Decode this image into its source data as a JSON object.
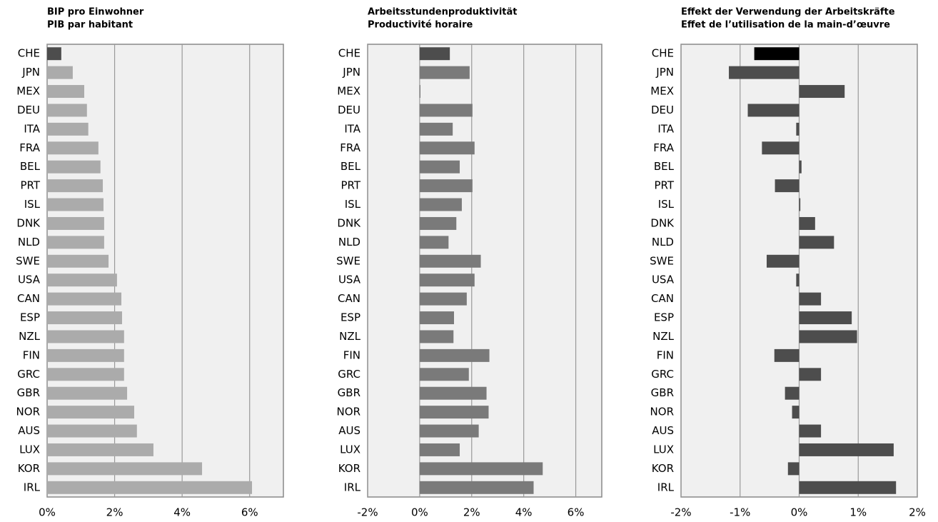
{
  "chart_data": [
    {
      "type": "bar",
      "orientation": "horizontal",
      "title": "BIP pro Einwohner",
      "subtitle": "PIB par habitant",
      "categories": [
        "CHE",
        "JPN",
        "MEX",
        "DEU",
        "ITA",
        "FRA",
        "BEL",
        "PRT",
        "ISL",
        "DNK",
        "NLD",
        "SWE",
        "USA",
        "CAN",
        "ESP",
        "NZL",
        "FIN",
        "GRC",
        "GBR",
        "NOR",
        "AUS",
        "LUX",
        "KOR",
        "IRL"
      ],
      "values": [
        0.42,
        0.76,
        1.1,
        1.18,
        1.22,
        1.52,
        1.58,
        1.65,
        1.67,
        1.69,
        1.69,
        1.82,
        2.07,
        2.2,
        2.22,
        2.28,
        2.28,
        2.28,
        2.37,
        2.58,
        2.66,
        3.15,
        4.59,
        6.07
      ],
      "colors": [
        "#4d4d4d",
        "#ababab",
        "#ababab",
        "#ababab",
        "#ababab",
        "#ababab",
        "#ababab",
        "#ababab",
        "#ababab",
        "#ababab",
        "#ababab",
        "#ababab",
        "#ababab",
        "#ababab",
        "#ababab",
        "#ababab",
        "#ababab",
        "#ababab",
        "#ababab",
        "#ababab",
        "#ababab",
        "#ababab",
        "#ababab",
        "#ababab"
      ],
      "xlim": [
        0,
        7
      ],
      "xticks": [
        {
          "value": 0,
          "label": "0%"
        },
        {
          "value": 2,
          "label": "2%"
        },
        {
          "value": 4,
          "label": "4%"
        },
        {
          "value": 6,
          "label": "6%"
        }
      ],
      "grid": true
    },
    {
      "type": "bar",
      "orientation": "horizontal",
      "title": "Arbeitsstundenproduktivität",
      "subtitle": "Productivité horaire",
      "categories": [
        "CHE",
        "JPN",
        "MEX",
        "DEU",
        "ITA",
        "FRA",
        "BEL",
        "PRT",
        "ISL",
        "DNK",
        "NLD",
        "SWE",
        "USA",
        "CAN",
        "ESP",
        "NZL",
        "FIN",
        "GRC",
        "GBR",
        "NOR",
        "AUS",
        "LUX",
        "KOR",
        "IRL"
      ],
      "values": [
        1.16,
        1.92,
        0.03,
        2.03,
        1.27,
        2.11,
        1.54,
        2.03,
        1.62,
        1.41,
        1.11,
        2.35,
        2.11,
        1.81,
        1.32,
        1.3,
        2.68,
        1.89,
        2.57,
        2.65,
        2.27,
        1.54,
        4.73,
        4.38
      ],
      "colors": [
        "#4d4d4d",
        "#7a7a7a",
        "#7a7a7a",
        "#7a7a7a",
        "#7a7a7a",
        "#7a7a7a",
        "#7a7a7a",
        "#7a7a7a",
        "#7a7a7a",
        "#7a7a7a",
        "#7a7a7a",
        "#7a7a7a",
        "#7a7a7a",
        "#7a7a7a",
        "#7a7a7a",
        "#7a7a7a",
        "#7a7a7a",
        "#7a7a7a",
        "#7a7a7a",
        "#7a7a7a",
        "#7a7a7a",
        "#7a7a7a",
        "#7a7a7a",
        "#7a7a7a"
      ],
      "xlim": [
        -2,
        7
      ],
      "xticks": [
        {
          "value": -2,
          "label": "-2%"
        },
        {
          "value": 0,
          "label": "0%"
        },
        {
          "value": 2,
          "label": "2%"
        },
        {
          "value": 4,
          "label": "4%"
        },
        {
          "value": 6,
          "label": "6%"
        }
      ],
      "grid": true
    },
    {
      "type": "bar",
      "orientation": "horizontal",
      "title": "Effekt der Verwendung der Arbeitskräfte",
      "subtitle": "Effet de l’utilisation de la main-d’œuvre",
      "categories": [
        "CHE",
        "JPN",
        "MEX",
        "DEU",
        "ITA",
        "FRA",
        "BEL",
        "PRT",
        "ISL",
        "DNK",
        "NLD",
        "SWE",
        "USA",
        "CAN",
        "ESP",
        "NZL",
        "FIN",
        "GRC",
        "GBR",
        "NOR",
        "AUS",
        "LUX",
        "KOR",
        "IRL"
      ],
      "values": [
        -0.76,
        -1.19,
        0.77,
        -0.87,
        -0.05,
        -0.63,
        0.04,
        -0.41,
        0.02,
        0.27,
        0.59,
        -0.55,
        -0.05,
        0.37,
        0.89,
        0.98,
        -0.42,
        0.37,
        -0.24,
        -0.12,
        0.37,
        1.6,
        -0.19,
        1.64
      ],
      "colors": [
        "#000000",
        "#4d4d4d",
        "#4d4d4d",
        "#4d4d4d",
        "#4d4d4d",
        "#4d4d4d",
        "#4d4d4d",
        "#4d4d4d",
        "#4d4d4d",
        "#4d4d4d",
        "#4d4d4d",
        "#4d4d4d",
        "#4d4d4d",
        "#4d4d4d",
        "#4d4d4d",
        "#4d4d4d",
        "#4d4d4d",
        "#4d4d4d",
        "#4d4d4d",
        "#4d4d4d",
        "#4d4d4d",
        "#4d4d4d",
        "#4d4d4d",
        "#4d4d4d"
      ],
      "xlim": [
        -2,
        2
      ],
      "xticks": [
        {
          "value": -2,
          "label": "-2%"
        },
        {
          "value": -1,
          "label": "-1%"
        },
        {
          "value": 0,
          "label": "0%"
        },
        {
          "value": 1,
          "label": "1%"
        },
        {
          "value": 2,
          "label": "2%"
        }
      ],
      "grid": true
    }
  ]
}
